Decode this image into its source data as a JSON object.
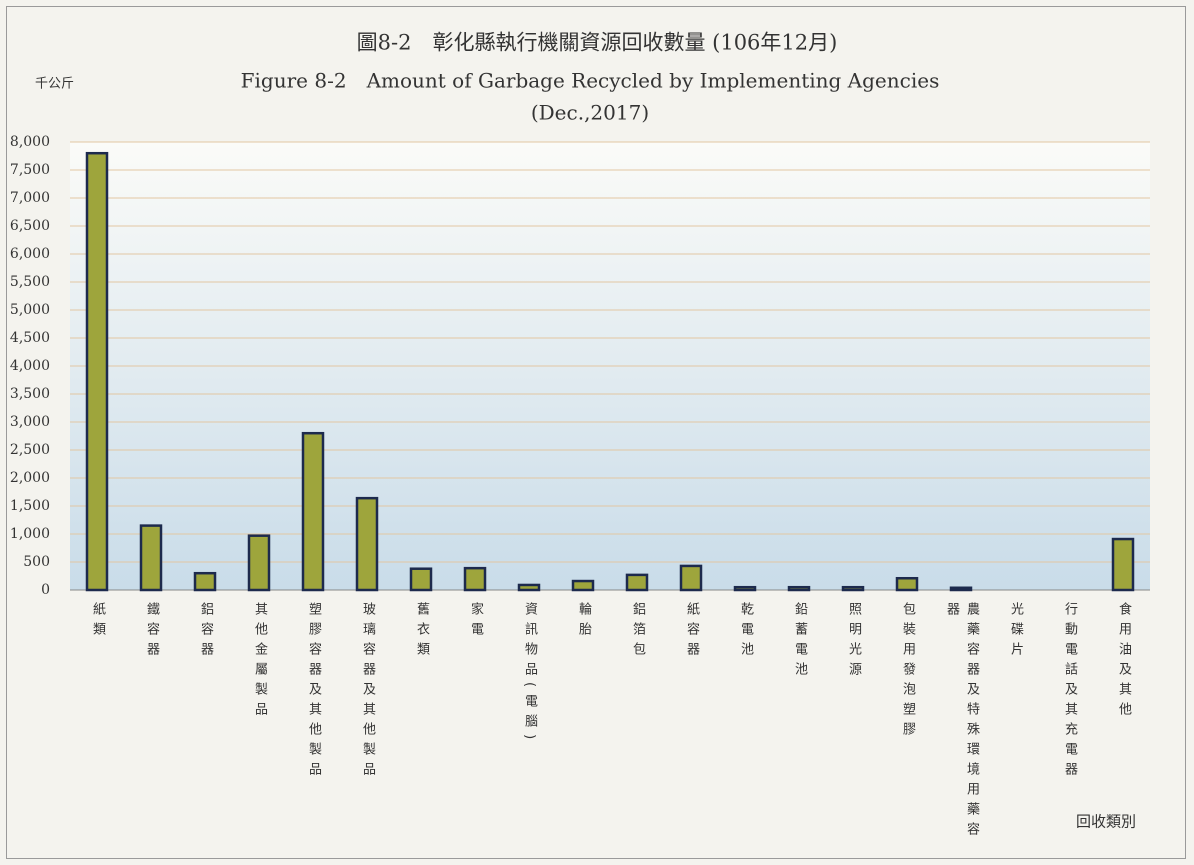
{
  "chart_data": {
    "type": "bar",
    "title": "圖8-2　彰化縣執行機關資源回收數量 (106年12月)",
    "subtitle": "Figure 8-2　Amount of Garbage Recycled by Implementing Agencies",
    "subtitle2": "(Dec.,2017)",
    "y_label": "千公斤",
    "x_label": "回收類別",
    "categories": [
      "紙類",
      "鐵容器",
      "鋁容器",
      "其他金屬製品",
      "塑膠容器及其他製品",
      "玻璃容器及其他製品",
      "舊衣類",
      "家電",
      "資訊物品(電腦)",
      "輪胎",
      "鋁箔包",
      "紙容器",
      "乾電池",
      "鉛蓄電池",
      "照明光源",
      "包裝用發泡塑膠",
      "農藥容器及特殊環境用藥容器",
      "光碟片",
      "行動電話及其充電器",
      "食用油及其他"
    ],
    "values": [
      7800,
      1150,
      300,
      970,
      2800,
      1640,
      380,
      390,
      90,
      160,
      270,
      430,
      50,
      50,
      50,
      210,
      40,
      0,
      0,
      910
    ],
    "color": "#9ea53c",
    "ylim": [
      0,
      8000
    ],
    "yticks": [
      0,
      500,
      {
        "value": 1000,
        "label": "1,000"
      },
      {
        "value": 1500,
        "label": "1,500"
      },
      {
        "value": 2000,
        "label": "2,000"
      },
      {
        "value": 2500,
        "label": "2,500"
      },
      {
        "value": 3000,
        "label": "3,000"
      },
      {
        "value": 3500,
        "label": "3,500"
      },
      {
        "value": 4000,
        "label": "4,000"
      },
      {
        "value": 4500,
        "label": "4,500"
      },
      {
        "value": 5000,
        "label": "5,000"
      },
      {
        "value": 5500,
        "label": "5,500"
      },
      {
        "value": 6000,
        "label": "6,000"
      },
      {
        "value": 6500,
        "label": "6,500"
      },
      {
        "value": 7000,
        "label": "7,000"
      },
      {
        "value": 7500,
        "label": "7,500"
      },
      {
        "value": 8000,
        "label": "8,000"
      }
    ],
    "grid": true
  }
}
